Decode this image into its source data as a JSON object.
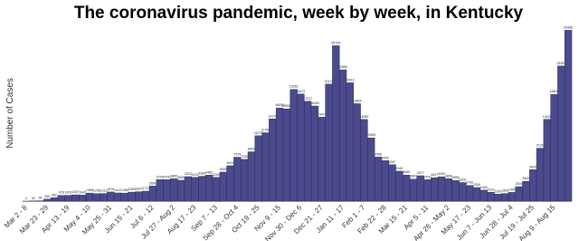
{
  "chart_data": {
    "type": "bar",
    "title": "The coronavirus pandemic, week by week, in Kentucky",
    "y_label": "Number of Cases",
    "categories": [
      "Mar 2 - 8",
      null,
      null,
      "Mar 23 - 29",
      null,
      null,
      "Apr 13 - 19",
      null,
      null,
      "May 4 - 10",
      null,
      null,
      "May 25 - 31",
      null,
      null,
      "Jun 15 - 21",
      null,
      null,
      "Jul 6 - 12",
      null,
      null,
      "Jul 27 - Aug 2",
      null,
      null,
      "Aug 17 - 23",
      null,
      null,
      "Sep 7 - 13",
      null,
      null,
      "Sep 28 - Oct 4",
      null,
      null,
      "Oct 19 - 25",
      null,
      null,
      "Nov 9 - 15",
      null,
      null,
      "Nov 30 - Dec 6",
      null,
      null,
      "Dec 21 - 27",
      null,
      null,
      "Jan 11 - 17",
      null,
      null,
      "Feb 1 - 7",
      null,
      null,
      "Feb 22 - 28",
      null,
      null,
      "Mar 15 - 21",
      null,
      null,
      "Apr 5 - 11",
      null,
      null,
      "Apr 26 - May 2",
      null,
      null,
      "May 17 - 23",
      null,
      null,
      "Jun 7 - Jun 13",
      null,
      null,
      "Jun 28 - Jul 4",
      null,
      null,
      "Jul 19 - Jul 25",
      null,
      null,
      "Aug 9 - Aug 15",
      null,
      null
    ],
    "values": [
      4,
      30,
      54,
      335,
      582,
      978,
      1001,
      1087,
      1042,
      1385,
      1295,
      1313,
      1575,
      1412,
      1385,
      1548,
      1620,
      1717,
      2600,
      3709,
      3700,
      3850,
      3600,
      4223,
      4100,
      4288,
      4482,
      4100,
      5000,
      6100,
      7575,
      7200,
      8500,
      11278,
      11790,
      14178,
      16058,
      15900,
      19262,
      18472,
      17217,
      16400,
      14474,
      20178,
      26799,
      22650,
      20412,
      16804,
      14089,
      10900,
      7596,
      6990,
      6287,
      5160,
      4500,
      3800,
      4377,
      3700,
      4027,
      4200,
      3866,
      3555,
      3200,
      2700,
      2350,
      1900,
      1513,
      1200,
      1300,
      1500,
      2500,
      3400,
      5420,
      9120,
      14100,
      18400,
      23300,
      29466
    ],
    "color": "#4b4a8c",
    "ylim": [
      0,
      30000
    ]
  }
}
